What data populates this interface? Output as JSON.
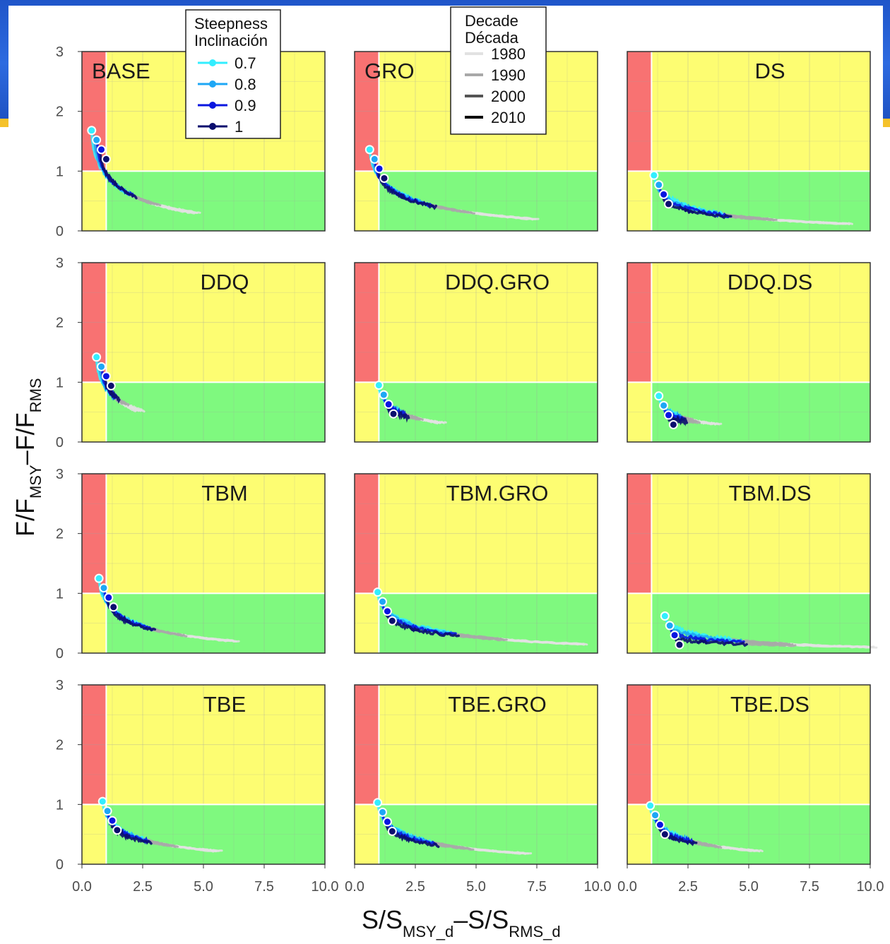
{
  "chart_data": {
    "type": "line",
    "layout": "facet-grid 4 rows x 3 columns, shared axes",
    "xlabel": {
      "main": "S/S",
      "sub1": "MSY_d",
      "mid": "–S/S",
      "sub2": "RMS_d"
    },
    "ylabel": {
      "main": "F/F",
      "sub1": "MSY",
      "mid": "–F/F",
      "sub2": "RMS"
    },
    "xlim": [
      0,
      10
    ],
    "ylim": [
      0,
      3
    ],
    "x_ticks": [
      "0.0",
      "2.5",
      "5.0",
      "7.5",
      "10.0"
    ],
    "y_ticks": [
      "0",
      "1",
      "2",
      "3"
    ],
    "reference_lines": {
      "x": 1,
      "y": 1
    },
    "zone_colors": {
      "overfished": "#f87272",
      "caution": "#fdfd72",
      "healthy": "#7ff97f"
    },
    "grid": true,
    "legend_steepness": {
      "title1": "Steepness",
      "title2": "Inclinación",
      "items": [
        {
          "label": "0.7",
          "color": "#33eeff"
        },
        {
          "label": "0.8",
          "color": "#1ea7f5"
        },
        {
          "label": "0.9",
          "color": "#0a16e0"
        },
        {
          "label": "1",
          "color": "#0b0e6e"
        }
      ]
    },
    "legend_decade": {
      "title1": "Decade",
      "title2": "Década",
      "items": [
        {
          "label": "1980",
          "color": "#e2e2e2"
        },
        {
          "label": "1990",
          "color": "#a8a8a8"
        },
        {
          "label": "2000",
          "color": "#555555"
        },
        {
          "label": "2010",
          "color": "#000000"
        }
      ]
    },
    "panels": [
      {
        "title": "BASE",
        "title_align": "left",
        "start_x": 0.4,
        "start_y": 1.68,
        "tail_x": 4.5,
        "tail_y": 0.3,
        "mid_x": 2.9,
        "mid_y": 0.42
      },
      {
        "title": "GRO",
        "title_align": "left",
        "start_x": 0.62,
        "start_y": 1.36,
        "tail_x": 7.2,
        "tail_y": 0.2,
        "mid_x": 3.9,
        "mid_y": 0.35
      },
      {
        "title": "DS",
        "title_align": "center",
        "start_x": 1.1,
        "start_y": 0.93,
        "tail_x": 8.9,
        "tail_y": 0.12,
        "mid_x": 4.9,
        "mid_y": 0.28
      },
      {
        "title": "DDQ",
        "title_align": "center",
        "start_x": 0.6,
        "start_y": 1.42,
        "tail_x": 2.2,
        "tail_y": 0.52,
        "mid_x": 1.7,
        "mid_y": 0.68
      },
      {
        "title": "DDQ.GRO",
        "title_align": "center",
        "start_x": 1.0,
        "start_y": 0.95,
        "tail_x": 3.4,
        "tail_y": 0.32,
        "mid_x": 2.6,
        "mid_y": 0.4
      },
      {
        "title": "DDQ.DS",
        "title_align": "center",
        "start_x": 1.3,
        "start_y": 0.77,
        "tail_x": 3.5,
        "tail_y": 0.3,
        "mid_x": 2.6,
        "mid_y": 0.38
      },
      {
        "title": "TBM",
        "title_align": "center",
        "start_x": 0.7,
        "start_y": 1.25,
        "tail_x": 6.1,
        "tail_y": 0.2,
        "mid_x": 3.4,
        "mid_y": 0.3
      },
      {
        "title": "TBM.GRO",
        "title_align": "center",
        "start_x": 0.95,
        "start_y": 1.02,
        "tail_x": 9.2,
        "tail_y": 0.15,
        "mid_x": 5.0,
        "mid_y": 0.22
      },
      {
        "title": "TBM.DS",
        "title_align": "center",
        "start_x": 1.55,
        "start_y": 0.62,
        "tail_x": 9.9,
        "tail_y": 0.1,
        "mid_x": 6.5,
        "mid_y": 0.17
      },
      {
        "title": "TBE",
        "title_align": "center",
        "start_x": 0.85,
        "start_y": 1.05,
        "tail_x": 5.4,
        "tail_y": 0.22,
        "mid_x": 3.3,
        "mid_y": 0.33
      },
      {
        "title": "TBE.GRO",
        "title_align": "center",
        "start_x": 0.95,
        "start_y": 1.03,
        "tail_x": 6.9,
        "tail_y": 0.18,
        "mid_x": 4.0,
        "mid_y": 0.32
      },
      {
        "title": "TBE.DS",
        "title_align": "center",
        "start_x": 0.95,
        "start_y": 0.98,
        "tail_x": 5.2,
        "tail_y": 0.22,
        "mid_x": 3.1,
        "mid_y": 0.33
      }
    ]
  }
}
